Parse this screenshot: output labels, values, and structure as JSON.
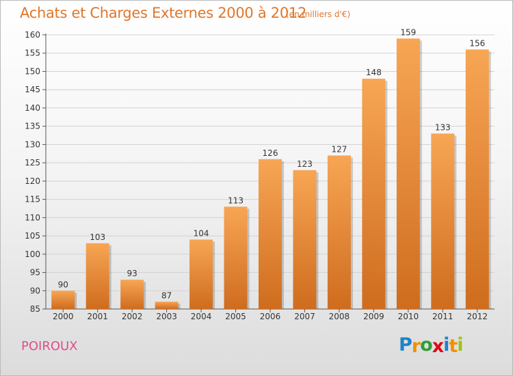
{
  "title": "Achats et Charges Externes 2000 à 2012",
  "subtitle": "(en milliers d'€)",
  "place": "POIROUX",
  "brand": {
    "letters": [
      "P",
      "r",
      "o",
      "x",
      "i",
      "t",
      "i"
    ],
    "colors": [
      "#1f83c8",
      "#f29100",
      "#2f9e3c",
      "#e30613",
      "#1f83c8",
      "#f29100",
      "#9cc21b"
    ]
  },
  "colors": {
    "bar_top": "#f7a654",
    "bar_bottom": "#cf6c1e",
    "title": "#e0762a",
    "place": "#e24c8a"
  },
  "chart_data": {
    "type": "bar",
    "categories": [
      "2000",
      "2001",
      "2002",
      "2003",
      "2004",
      "2005",
      "2006",
      "2007",
      "2008",
      "2009",
      "2010",
      "2011",
      "2012"
    ],
    "values": [
      90,
      103,
      93,
      87,
      104,
      113,
      126,
      123,
      127,
      148,
      159,
      133,
      156
    ],
    "data_labels": [
      "90",
      "103",
      "93",
      "87",
      "104",
      "113",
      "126",
      "123",
      "127",
      "148",
      "159",
      "133",
      "156"
    ],
    "yticks": [
      "85",
      "90",
      "95",
      "100",
      "105",
      "110",
      "115",
      "120",
      "125",
      "130",
      "135",
      "140",
      "145",
      "150",
      "155",
      "160"
    ],
    "ylim": [
      85,
      160
    ],
    "grid": true
  }
}
